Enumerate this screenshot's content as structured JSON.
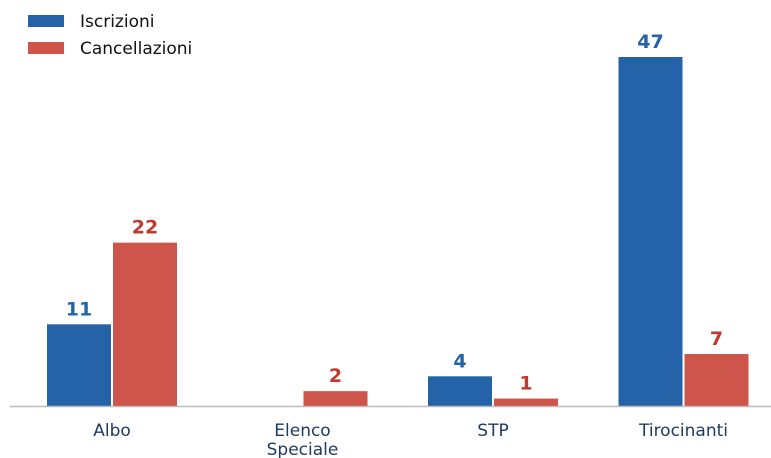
{
  "chart_data": {
    "type": "bar",
    "title": "",
    "xlabel": "",
    "ylabel": "",
    "ylim": [
      0,
      50
    ],
    "grid": false,
    "legend": "top-left",
    "categories": [
      [
        "Albo"
      ],
      [
        "Elenco",
        "Speciale"
      ],
      [
        "STP"
      ],
      [
        "Tirocinanti"
      ]
    ],
    "series": [
      {
        "name": "Iscrizioni",
        "color": "#2563a8",
        "values": [
          11,
          0,
          4,
          47
        ],
        "labels": [
          "11",
          "",
          "4",
          "47"
        ]
      },
      {
        "name": "Cancellazioni",
        "color": "#cd554b",
        "values": [
          22,
          2,
          1,
          7
        ],
        "labels": [
          "22",
          "2",
          "1",
          "7"
        ]
      }
    ],
    "label_colors": [
      "#2563a8",
      "#c0392b"
    ]
  }
}
